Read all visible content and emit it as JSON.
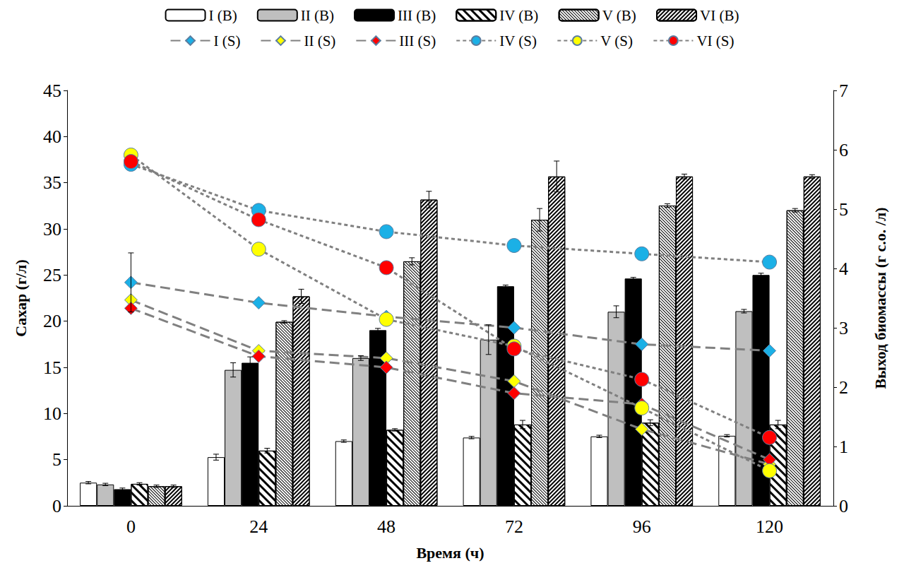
{
  "chart_data": {
    "type": "bar",
    "x_label": "Время (ч)",
    "y_label": "Сахар (г/л)",
    "y2_label": "Выход биомассы (г с.о. /л)",
    "categories": [
      "0",
      "24",
      "48",
      "72",
      "96",
      "120"
    ],
    "ylim": [
      0,
      45
    ],
    "yticks": [
      0,
      5,
      10,
      15,
      20,
      25,
      30,
      35,
      40,
      45
    ],
    "y2lim": [
      0,
      7
    ],
    "y2ticks": [
      0,
      1,
      2,
      3,
      4,
      5,
      6,
      7
    ],
    "grid": false,
    "legend": "top",
    "series": [
      {
        "name": "I (B)",
        "type": "bar",
        "axis": "y2",
        "color": "#ffffff",
        "values": [
          0.39,
          0.82,
          1.09,
          1.15,
          1.17,
          1.18
        ],
        "errors": [
          0.02,
          0.05,
          0.02,
          0.02,
          0.02,
          0.02
        ]
      },
      {
        "name": "II (B)",
        "type": "bar",
        "axis": "y2",
        "color": "#bfbfbf",
        "values": [
          0.36,
          2.29,
          2.49,
          2.8,
          3.27,
          3.28
        ],
        "errors": [
          0.02,
          0.12,
          0.04,
          0.25,
          0.1,
          0.03
        ]
      },
      {
        "name": "III (B)",
        "type": "bar",
        "axis": "y2",
        "color": "#000000",
        "values": [
          0.28,
          2.41,
          2.96,
          3.7,
          3.83,
          3.89
        ],
        "errors": [
          0.02,
          0.1,
          0.03,
          0.02,
          0.02,
          0.03
        ]
      },
      {
        "name": "IV (B)",
        "type": "bar",
        "axis": "y2",
        "color": "#000000",
        "values": [
          0.37,
          0.93,
          1.28,
          1.37,
          1.4,
          1.37
        ],
        "errors": [
          0.02,
          0.04,
          0.02,
          0.07,
          0.05,
          0.07
        ]
      },
      {
        "name": "V (B)",
        "type": "bar",
        "axis": "y2",
        "color": "#000000",
        "values": [
          0.33,
          3.1,
          4.12,
          4.82,
          5.06,
          4.98
        ],
        "errors": [
          0.02,
          0.02,
          0.06,
          0.19,
          0.03,
          0.03
        ]
      },
      {
        "name": "VI (B)",
        "type": "bar",
        "axis": "y2",
        "color": "#000000",
        "values": [
          0.33,
          3.53,
          5.16,
          5.55,
          5.55,
          5.55
        ],
        "errors": [
          0.02,
          0.12,
          0.14,
          0.26,
          0.04,
          0.03
        ]
      },
      {
        "name": "I (S)",
        "type": "line",
        "marker": "diamond",
        "line_style": "longdash",
        "color": "#1bb0e6",
        "values": [
          24.2,
          22,
          20.5,
          19.3,
          17.5,
          16.8
        ],
        "errors": [
          3.2,
          null,
          null,
          null,
          null,
          null
        ]
      },
      {
        "name": "II (S)",
        "type": "line",
        "marker": "diamond",
        "line_style": "longdash",
        "color": "#ffff00",
        "values": [
          22.3,
          16.8,
          16,
          13.5,
          8.3,
          4.5
        ]
      },
      {
        "name": "III (S)",
        "type": "line",
        "marker": "diamond",
        "line_style": "longdash",
        "color": "#ff0000",
        "values": [
          21.4,
          16.2,
          15,
          12.2,
          11,
          5
        ]
      },
      {
        "name": "IV (S)",
        "type": "line",
        "marker": "circle",
        "line_style": "dashed",
        "color": "#1bb0e6",
        "values": [
          37,
          32,
          29.7,
          28.2,
          27.3,
          26.4
        ]
      },
      {
        "name": "V (S)",
        "type": "line",
        "marker": "circle",
        "line_style": "dashed",
        "color": "#ffff00",
        "values": [
          38,
          27.8,
          20.2,
          17.3,
          10.6,
          3.8
        ]
      },
      {
        "name": "VI (S)",
        "type": "line",
        "marker": "circle",
        "line_style": "dashed",
        "color": "#ff0000",
        "values": [
          37.3,
          31,
          25.8,
          17,
          13.7,
          7.4
        ]
      }
    ]
  }
}
